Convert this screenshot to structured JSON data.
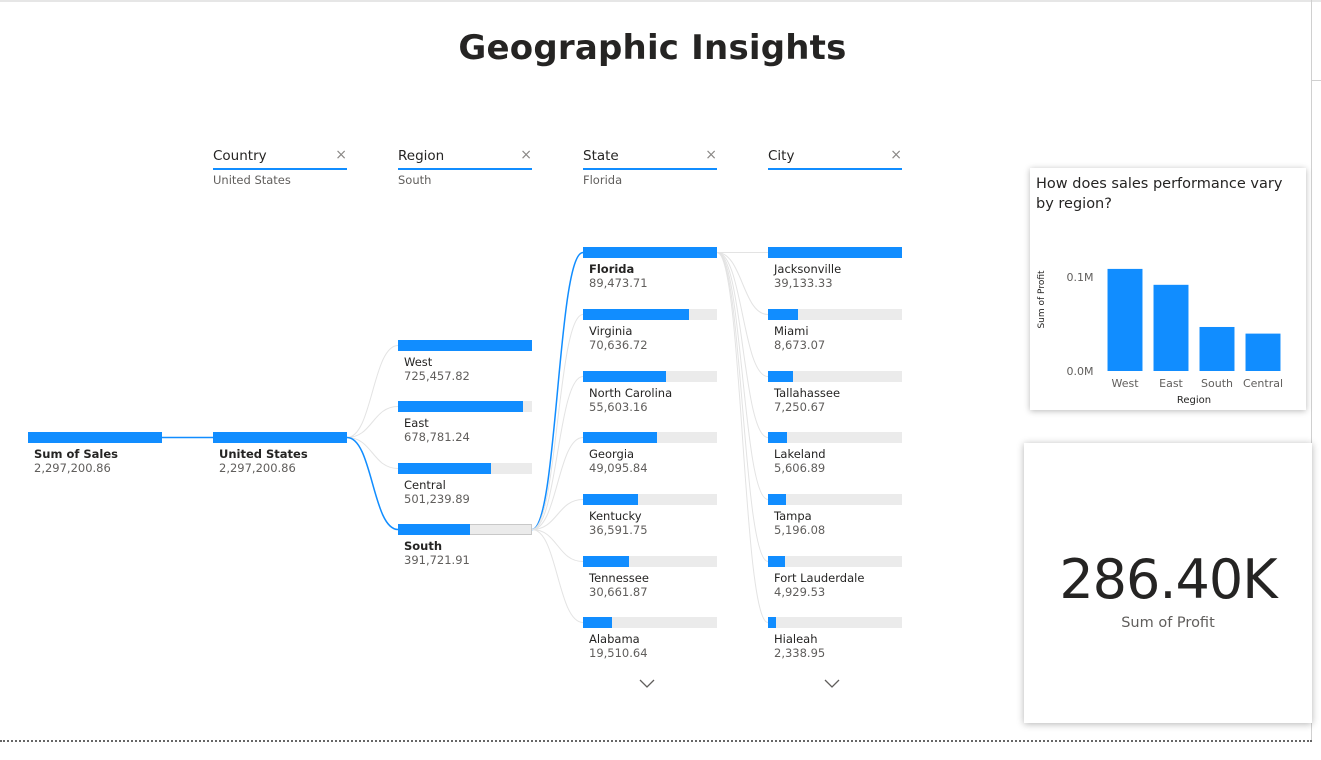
{
  "page": {
    "title": "Geographic Insights"
  },
  "decomposition_tree": {
    "levels": [
      {
        "field": "Country",
        "selected": "United States"
      },
      {
        "field": "Region",
        "selected": "South"
      },
      {
        "field": "State",
        "selected": "Florida"
      },
      {
        "field": "City",
        "selected": ""
      }
    ],
    "close_symbol": "×",
    "root": {
      "label": "Sum of Sales",
      "value": "2,297,200.86",
      "fraction": 1.0
    },
    "country_nodes": [
      {
        "label": "United States",
        "value": "2,297,200.86",
        "fraction": 1.0,
        "selected": true
      }
    ],
    "region_nodes": [
      {
        "label": "West",
        "value": "725,457.82",
        "fraction": 1.0,
        "selected": false
      },
      {
        "label": "East",
        "value": "678,781.24",
        "fraction": 0.936,
        "selected": false
      },
      {
        "label": "Central",
        "value": "501,239.89",
        "fraction": 0.691,
        "selected": false
      },
      {
        "label": "South",
        "value": "391,721.91",
        "fraction": 0.54,
        "selected": true
      }
    ],
    "state_nodes": [
      {
        "label": "Florida",
        "value": "89,473.71",
        "fraction": 1.0,
        "selected": true
      },
      {
        "label": "Virginia",
        "value": "70,636.72",
        "fraction": 0.789,
        "selected": false
      },
      {
        "label": "North Carolina",
        "value": "55,603.16",
        "fraction": 0.621,
        "selected": false
      },
      {
        "label": "Georgia",
        "value": "49,095.84",
        "fraction": 0.549,
        "selected": false
      },
      {
        "label": "Kentucky",
        "value": "36,591.75",
        "fraction": 0.409,
        "selected": false
      },
      {
        "label": "Tennessee",
        "value": "30,661.87",
        "fraction": 0.343,
        "selected": false
      },
      {
        "label": "Alabama",
        "value": "19,510.64",
        "fraction": 0.218,
        "selected": false
      }
    ],
    "city_nodes": [
      {
        "label": "Jacksonville",
        "value": "39,133.33",
        "fraction": 1.0,
        "selected": false
      },
      {
        "label": "Miami",
        "value": "8,673.07",
        "fraction": 0.222,
        "selected": false
      },
      {
        "label": "Tallahassee",
        "value": "7,250.67",
        "fraction": 0.185,
        "selected": false
      },
      {
        "label": "Lakeland",
        "value": "5,606.89",
        "fraction": 0.143,
        "selected": false
      },
      {
        "label": "Tampa",
        "value": "5,196.08",
        "fraction": 0.133,
        "selected": false
      },
      {
        "label": "Fort Lauderdale",
        "value": "4,929.53",
        "fraction": 0.126,
        "selected": false
      },
      {
        "label": "Hialeah",
        "value": "2,338.95",
        "fraction": 0.06,
        "selected": false
      }
    ],
    "more_icon": "chevron-down-icon"
  },
  "chart_data": {
    "type": "bar",
    "title": "How does sales performance vary by region?",
    "categories": [
      "West",
      "East",
      "South",
      "Central"
    ],
    "values": [
      108418,
      91522,
      46749,
      39706
    ],
    "xlabel": "Region",
    "ylabel": "Sum of Profit",
    "ylim": [
      0,
      120000
    ],
    "yticks": [
      {
        "value": 0,
        "label": "0.0M"
      },
      {
        "value": 100000,
        "label": "0.1M"
      }
    ],
    "grid": false,
    "color": "#118dff"
  },
  "kpi": {
    "value": "286.40K",
    "label": "Sum of Profit"
  },
  "colors": {
    "accent": "#118dff",
    "track": "#ebebeb",
    "text": "#252423",
    "subtext": "#605e5c"
  }
}
